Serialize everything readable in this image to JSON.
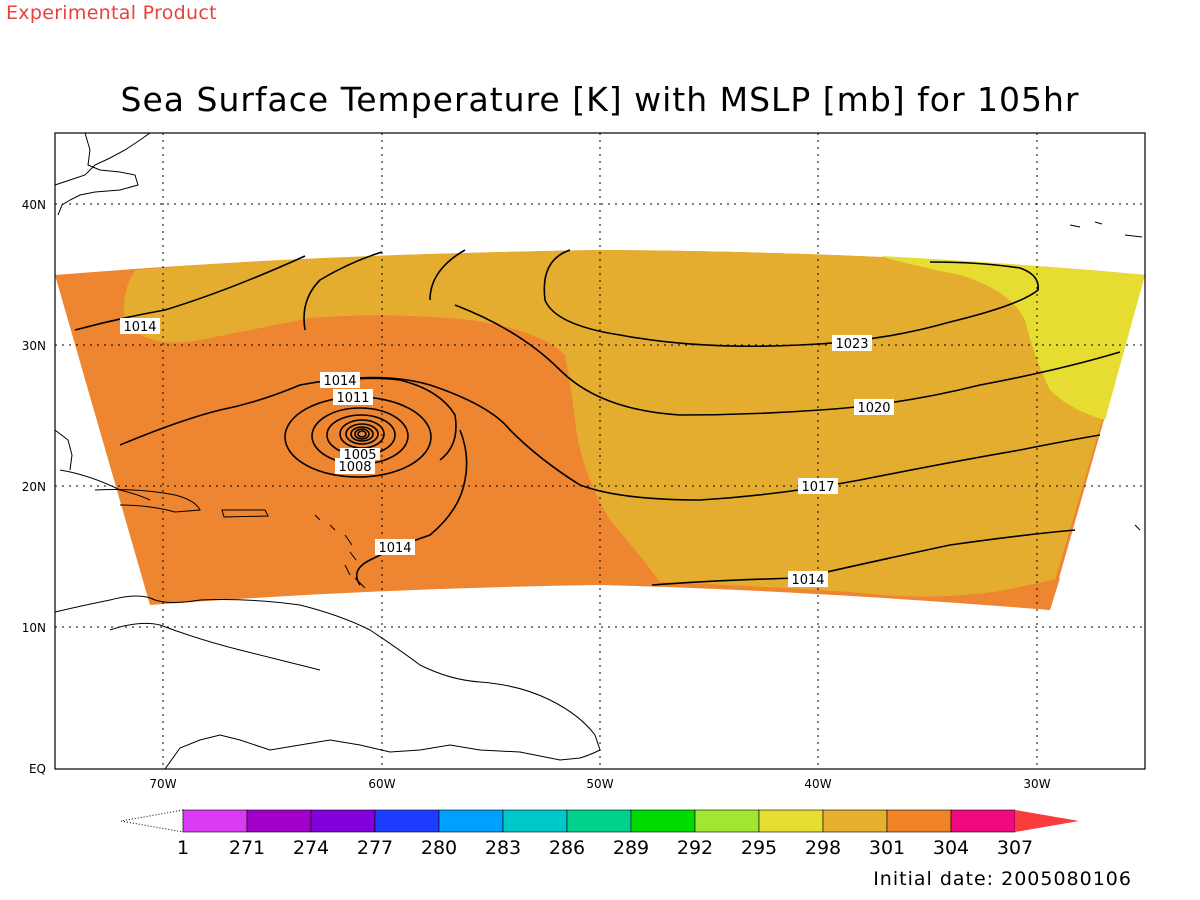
{
  "header": {
    "product_note": "Experimental Product",
    "title": "Sea Surface Temperature [K] with MSLP [mb] for 105hr"
  },
  "footer": {
    "initial_date": "Initial date: 2005080106"
  },
  "map": {
    "lon_range": [
      -75,
      -25
    ],
    "lat_range": [
      0,
      45
    ],
    "lon_ticks": [
      "70W",
      "60W",
      "50W",
      "40W",
      "30W"
    ],
    "lat_ticks": [
      "EQ",
      "10N",
      "20N",
      "30N",
      "40N"
    ],
    "sst_colors": {
      "warm_orange": "#ee8530",
      "gold": "#e5ad2f",
      "yellow": "#e6dc32"
    },
    "pressure_contour_labels": [
      "1014",
      "1014",
      "1011",
      "1008",
      "1005",
      "1014",
      "1014",
      "1017",
      "1020",
      "1023"
    ]
  },
  "colorbar": {
    "labels": [
      "1",
      "271",
      "274",
      "277",
      "280",
      "283",
      "286",
      "289",
      "292",
      "295",
      "298",
      "301",
      "304",
      "307"
    ],
    "colors": [
      "#da3bf5",
      "#a200c8",
      "#8200dc",
      "#1e3cff",
      "#00a0ff",
      "#00c8c8",
      "#00d28c",
      "#00dc00",
      "#a0e632",
      "#e6dc32",
      "#e6af2d",
      "#f08228",
      "#f00a82",
      "#fa3c3c"
    ]
  }
}
